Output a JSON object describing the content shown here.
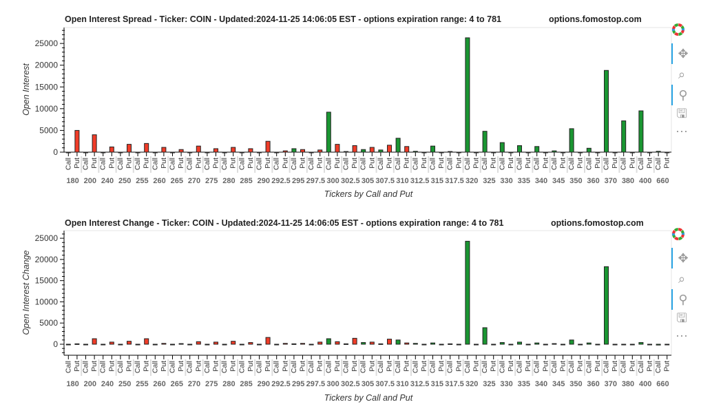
{
  "chart_data": [
    {
      "type": "bar",
      "title": "Open Interest Spread - Ticker: COIN - Updated:2024-11-25 14:06:05 EST - options expiration range: 4 to 781",
      "site": "options.fomostop.com",
      "xlabel": "Tickers by Call and Put",
      "ylabel": "Open Interest",
      "ylim": [
        0,
        28660
      ],
      "yticks": [
        0,
        5000,
        10000,
        15000,
        20000,
        25000
      ],
      "subcategories": [
        "Call",
        "Put"
      ],
      "categories": [
        "180",
        "200",
        "240",
        "250",
        "255",
        "260",
        "265",
        "270",
        "275",
        "280",
        "285",
        "290",
        "292.5",
        "295",
        "297.5",
        "300",
        "302.5",
        "305",
        "307.5",
        "310",
        "312.5",
        "315",
        "317.5",
        "320",
        "325",
        "330",
        "335",
        "340",
        "345",
        "350",
        "360",
        "370",
        "380",
        "400",
        "660"
      ],
      "series": [
        {
          "name": "Call",
          "color": "#1a9632",
          "values": [
            0,
            0,
            0,
            0,
            0,
            0,
            0,
            0,
            0,
            0,
            0,
            0,
            0,
            800,
            0,
            9200,
            150,
            600,
            500,
            3200,
            200,
            1400,
            150,
            26300,
            4800,
            2200,
            1500,
            1300,
            300,
            5400,
            900,
            18800,
            7200,
            9500,
            200
          ]
        },
        {
          "name": "Put",
          "color": "#f03c28",
          "values": [
            5000,
            4000,
            1200,
            1800,
            2000,
            1100,
            600,
            1400,
            800,
            1100,
            800,
            2500,
            300,
            600,
            500,
            1800,
            1500,
            1100,
            1600,
            1300,
            0,
            0,
            0,
            0,
            0,
            0,
            0,
            0,
            0,
            0,
            0,
            0,
            0,
            0,
            0
          ]
        }
      ]
    },
    {
      "type": "bar",
      "title": "Open Interest Change - Ticker: COIN - Updated:2024-11-25 14:06:05 EST - options expiration range: 4 to 781",
      "site": "options.fomostop.com",
      "xlabel": "Tickers by Call and Put",
      "ylabel": "Open Interest Change",
      "ylim": [
        -2600,
        26800
      ],
      "yticks": [
        0,
        5000,
        10000,
        15000,
        20000,
        25000
      ],
      "subcategories": [
        "Call",
        "Put"
      ],
      "categories": [
        "180",
        "200",
        "240",
        "250",
        "255",
        "260",
        "265",
        "270",
        "275",
        "280",
        "285",
        "290",
        "292.5",
        "295",
        "297.5",
        "300",
        "302.5",
        "305",
        "307.5",
        "310",
        "312.5",
        "315",
        "317.5",
        "320",
        "325",
        "330",
        "335",
        "340",
        "345",
        "350",
        "360",
        "370",
        "380",
        "400",
        "660"
      ],
      "series": [
        {
          "name": "Call",
          "color": "#1a9632",
          "values": [
            0,
            0,
            0,
            0,
            0,
            0,
            0,
            0,
            0,
            0,
            0,
            0,
            0,
            100,
            0,
            1300,
            100,
            400,
            100,
            1000,
            200,
            300,
            100,
            24300,
            3900,
            400,
            500,
            300,
            150,
            1000,
            300,
            18300,
            -100,
            400,
            -200
          ]
        },
        {
          "name": "Put",
          "color": "#f03c28",
          "values": [
            100,
            1300,
            500,
            700,
            1300,
            200,
            150,
            600,
            500,
            700,
            400,
            1600,
            200,
            200,
            500,
            600,
            1400,
            500,
            1200,
            300,
            0,
            0,
            0,
            0,
            0,
            0,
            0,
            0,
            0,
            0,
            0,
            0,
            0,
            0,
            0
          ]
        }
      ]
    }
  ]
}
